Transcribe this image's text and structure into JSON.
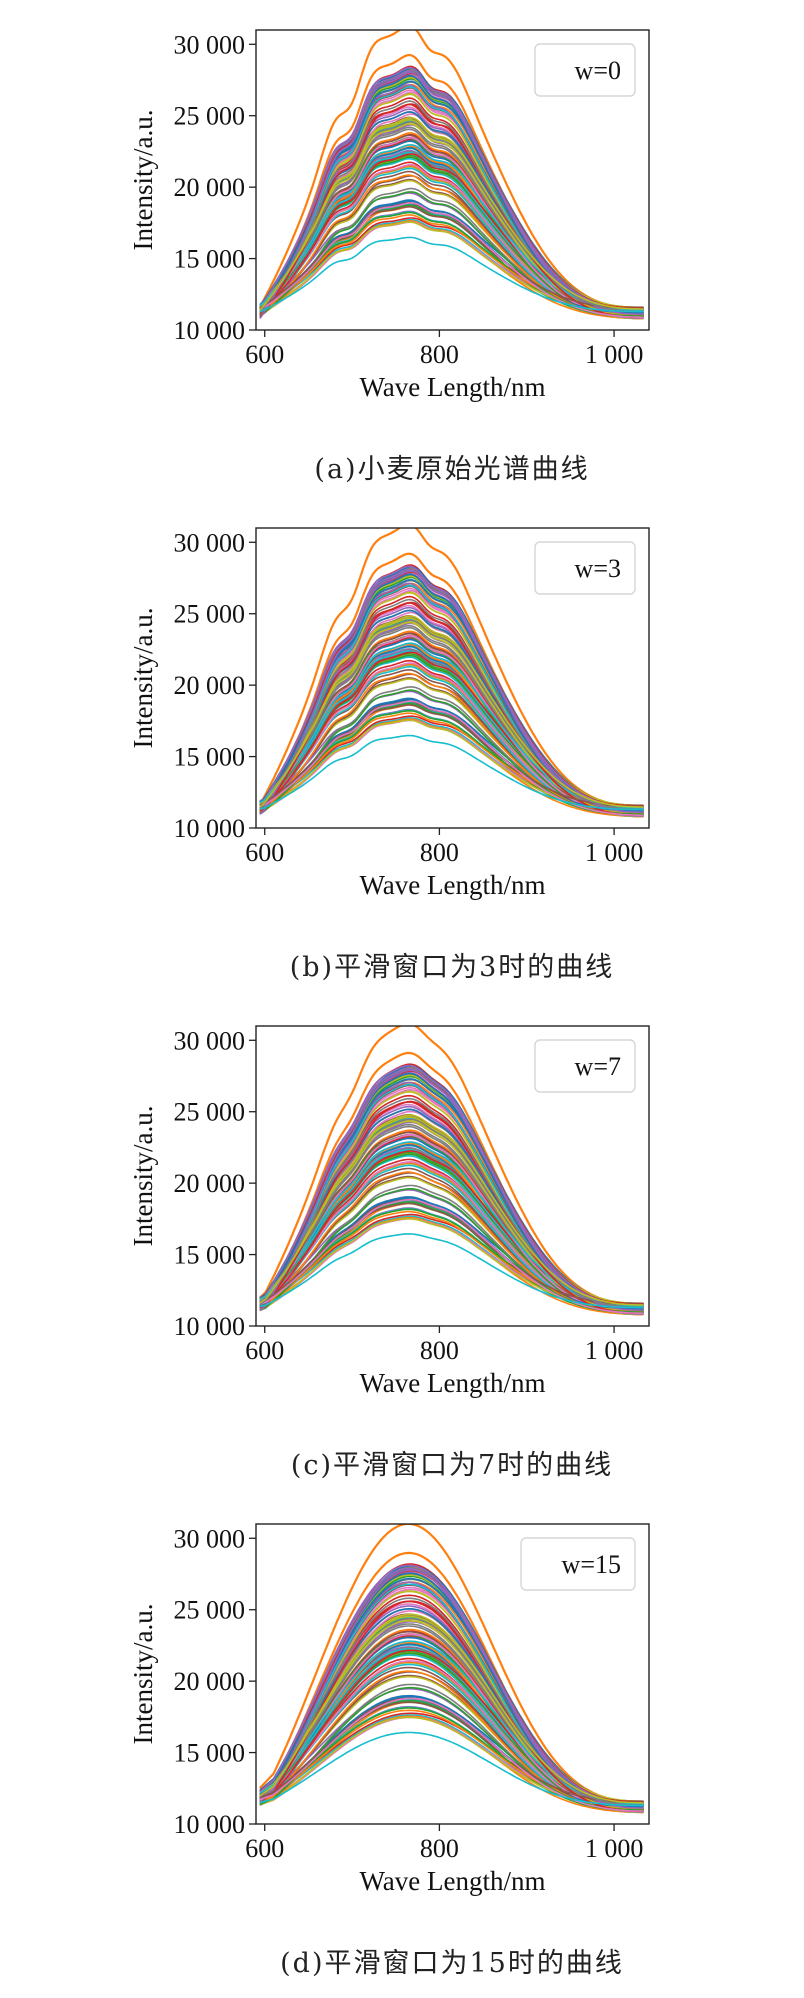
{
  "chart_data": [
    {
      "type": "line",
      "panel": "a",
      "smoothing_window": 0,
      "legend": {
        "text": "w=0",
        "placement": "top-right"
      },
      "caption": "(a)小麦原始光谱曲线",
      "xlabel": "Wave Length/nm",
      "ylabel": "Intensity/a.u.",
      "xlim": [
        590,
        1040
      ],
      "ylim": [
        10000,
        31000
      ],
      "xticks": [
        600,
        800,
        1000
      ],
      "xtick_labels": [
        "600",
        "800",
        "1 000"
      ],
      "yticks": [
        10000,
        15000,
        20000,
        25000,
        30000
      ],
      "ytick_labels": [
        "10 000",
        "15 000",
        "20 000",
        "25 000",
        "30 000"
      ],
      "grid": false,
      "x_range": [
        595,
        1035
      ],
      "series_count_estimate": 120,
      "series_min_peak": 16300,
      "series_max_peak": 30600,
      "shape_note": "broad hump peaking near 730-760 nm with a secondary shoulder near 810-830 nm; all curves start near 11 000 at 595 nm and end near 11 000 at 1 035 nm",
      "series_colors": [
        "#1f77b4",
        "#ff7f0e",
        "#2ca02c",
        "#d62728",
        "#9467bd",
        "#8c564b",
        "#e377c2",
        "#7f7f7f",
        "#bcbd22",
        "#17becf"
      ]
    },
    {
      "type": "line",
      "panel": "b",
      "smoothing_window": 3,
      "legend": {
        "text": "w=3",
        "placement": "top-right"
      },
      "caption": "(b)平滑窗口为3时的曲线",
      "xlabel": "Wave Length/nm",
      "ylabel": "Intensity/a.u.",
      "xlim": [
        590,
        1040
      ],
      "ylim": [
        10000,
        31000
      ],
      "xticks": [
        600,
        800,
        1000
      ],
      "xtick_labels": [
        "600",
        "800",
        "1 000"
      ],
      "yticks": [
        10000,
        15000,
        20000,
        25000,
        30000
      ],
      "ytick_labels": [
        "10 000",
        "15 000",
        "20 000",
        "25 000",
        "30 000"
      ],
      "grid": false,
      "x_range": [
        595,
        1035
      ],
      "series_count_estimate": 120,
      "series_min_peak": 16300,
      "series_max_peak": 30600,
      "series_colors": [
        "#1f77b4",
        "#ff7f0e",
        "#2ca02c",
        "#d62728",
        "#9467bd",
        "#8c564b",
        "#e377c2",
        "#7f7f7f",
        "#bcbd22",
        "#17becf"
      ]
    },
    {
      "type": "line",
      "panel": "c",
      "smoothing_window": 7,
      "legend": {
        "text": "w=7",
        "placement": "top-right"
      },
      "caption": "(c)平滑窗口为7时的曲线",
      "xlabel": "Wave Length/nm",
      "ylabel": "Intensity/a.u.",
      "xlim": [
        590,
        1040
      ],
      "ylim": [
        10000,
        31000
      ],
      "xticks": [
        600,
        800,
        1000
      ],
      "xtick_labels": [
        "600",
        "800",
        "1 000"
      ],
      "yticks": [
        10000,
        15000,
        20000,
        25000,
        30000
      ],
      "ytick_labels": [
        "10 000",
        "15 000",
        "20 000",
        "25 000",
        "30 000"
      ],
      "grid": false,
      "x_range": [
        595,
        1035
      ],
      "series_count_estimate": 120,
      "series_min_peak": 16300,
      "series_max_peak": 30600,
      "series_colors": [
        "#1f77b4",
        "#ff7f0e",
        "#2ca02c",
        "#d62728",
        "#9467bd",
        "#8c564b",
        "#e377c2",
        "#7f7f7f",
        "#bcbd22",
        "#17becf"
      ]
    },
    {
      "type": "line",
      "panel": "d",
      "smoothing_window": 15,
      "legend": {
        "text": "w=15",
        "placement": "top-right"
      },
      "caption": "(d)平滑窗口为15时的曲线",
      "xlabel": "Wave Length/nm",
      "ylabel": "Intensity/a.u.",
      "xlim": [
        590,
        1040
      ],
      "ylim": [
        10000,
        31000
      ],
      "xticks": [
        600,
        800,
        1000
      ],
      "xtick_labels": [
        "600",
        "800",
        "1 000"
      ],
      "yticks": [
        10000,
        15000,
        20000,
        25000,
        30000
      ],
      "ytick_labels": [
        "10 000",
        "15 000",
        "20 000",
        "25 000",
        "30 000"
      ],
      "grid": false,
      "x_range": [
        595,
        1035
      ],
      "series_count_estimate": 120,
      "series_min_peak": 16300,
      "series_max_peak": 30600,
      "series_colors": [
        "#1f77b4",
        "#ff7f0e",
        "#2ca02c",
        "#d62728",
        "#9467bd",
        "#8c564b",
        "#e377c2",
        "#7f7f7f",
        "#bcbd22",
        "#17becf"
      ]
    }
  ]
}
